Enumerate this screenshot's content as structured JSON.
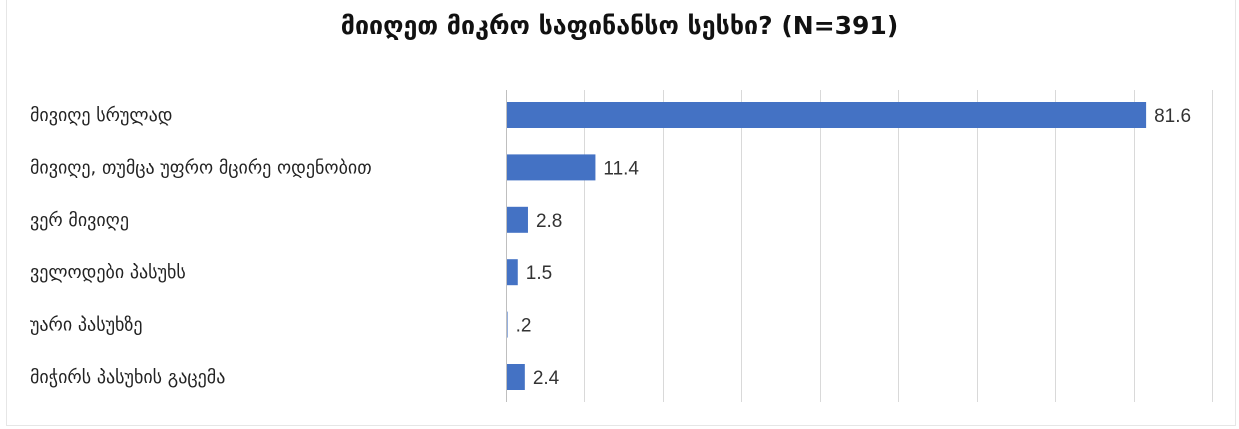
{
  "chart_data": {
    "type": "bar",
    "orientation": "horizontal",
    "title": "მიიღეთ მიკრო საფინანსო სესხი? (N=391)",
    "xlabel": "",
    "ylabel": "",
    "xlim": [
      0,
      90
    ],
    "grid": true,
    "legend": "none",
    "categories": [
      "მივიღე სრულად",
      "მივიღე, თუმცა უფრო მცირე ოდენობით",
      "ვერ მივიღე",
      "ველოდები პასუხს",
      "უარი პასუხზე",
      "მიჭირს პასუხის გაცემა"
    ],
    "values": [
      81.6,
      11.4,
      2.8,
      1.5,
      0.2,
      2.4
    ],
    "value_labels": [
      "81.6",
      "11.4",
      "2.8",
      "1.5",
      ".2",
      "2.4"
    ],
    "bar_color": "#4472c4",
    "grid_color": "#d9d9d9"
  }
}
